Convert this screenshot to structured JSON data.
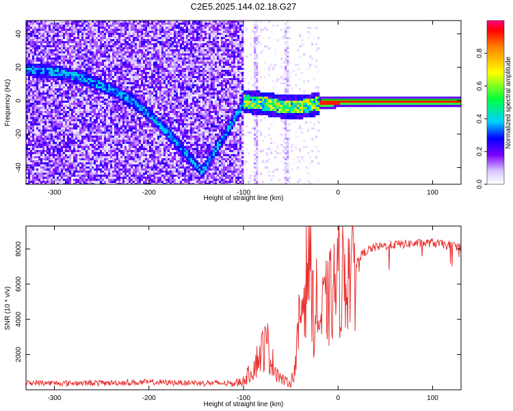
{
  "title": "C2E5.2025.144.02.18.G27",
  "chart_data": [
    {
      "type": "heatmap",
      "xlabel": "Height of straight line (km)",
      "ylabel": "Frequency (Hz)",
      "xlim": [
        -330,
        130
      ],
      "ylim": [
        -50,
        48
      ],
      "xticks": [
        -300,
        -200,
        -100,
        0,
        100
      ],
      "yticks": [
        -40,
        -20,
        0,
        20,
        40
      ],
      "colorbar": {
        "label": "Normalized spectral amplitude",
        "range": [
          0,
          1
        ],
        "ticks": [
          0.0,
          0.2,
          0.4,
          0.6,
          0.8
        ]
      },
      "ridge": [
        {
          "x": -330,
          "y": 19
        },
        {
          "x": -300,
          "y": 18
        },
        {
          "x": -270,
          "y": 14
        },
        {
          "x": -240,
          "y": 7
        },
        {
          "x": -220,
          "y": 1
        },
        {
          "x": -200,
          "y": -8
        },
        {
          "x": -180,
          "y": -19
        },
        {
          "x": -160,
          "y": -32
        },
        {
          "x": -145,
          "y": -42
        },
        {
          "x": -100,
          "y": 0
        },
        {
          "x": -80,
          "y": -1
        },
        {
          "x": -60,
          "y": -3
        },
        {
          "x": -40,
          "y": -3
        },
        {
          "x": -20,
          "y": -1
        },
        {
          "x": 0,
          "y": 0
        },
        {
          "x": 130,
          "y": 0
        }
      ]
    },
    {
      "type": "line",
      "xlabel": "Height of straight line (km)",
      "ylabel": "SNR (10 * v/v)",
      "xlim": [
        -330,
        130
      ],
      "ylim": [
        0,
        9300
      ],
      "xticks": [
        -300,
        -200,
        -100,
        0,
        100
      ],
      "yticks": [
        2000,
        4000,
        6000,
        8000
      ],
      "series": [
        {
          "color": "#e8312f",
          "x": [
            -330,
            -300,
            -250,
            -200,
            -150,
            -110,
            -100,
            -90,
            -80,
            -75,
            -70,
            -60,
            -50,
            -45,
            -40,
            -35,
            -30,
            -25,
            -22,
            -20,
            -15,
            -10,
            -5,
            0,
            10,
            20,
            30,
            40,
            60,
            80,
            100,
            130
          ],
          "y": [
            400,
            380,
            390,
            420,
            400,
            350,
            500,
            1200,
            2300,
            2600,
            1600,
            600,
            350,
            1400,
            4200,
            6000,
            8800,
            3000,
            5500,
            3500,
            4600,
            5000,
            5600,
            6200,
            6800,
            7400,
            7900,
            8100,
            8250,
            8300,
            8350,
            8100
          ]
        }
      ]
    }
  ]
}
